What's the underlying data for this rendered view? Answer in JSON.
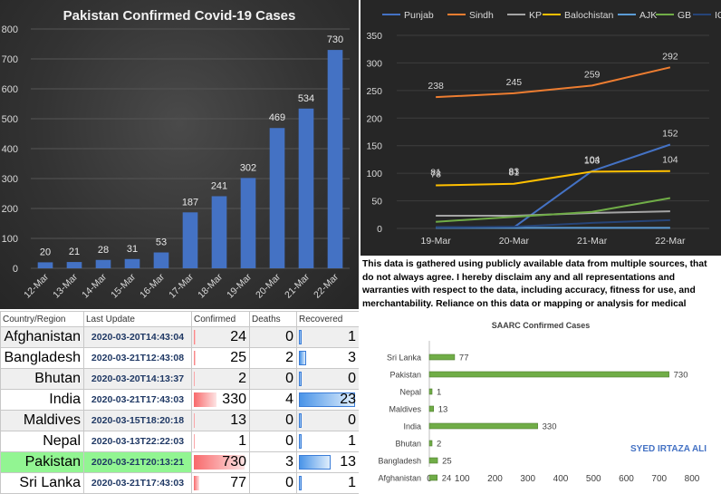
{
  "chart_data": [
    {
      "type": "bar",
      "title": "Pakistan Confirmed Covid-19 Cases",
      "categories": [
        "12-Mar",
        "13-Mar",
        "14-Mar",
        "15-Mar",
        "16-Mar",
        "17-Mar",
        "18-Mar",
        "19-Mar",
        "20-Mar",
        "21-Mar",
        "22-Mar"
      ],
      "values": [
        20,
        21,
        28,
        31,
        53,
        187,
        241,
        302,
        469,
        534,
        730
      ],
      "ylim": [
        0,
        800
      ],
      "yticks": [
        0,
        100,
        200,
        300,
        400,
        500,
        600,
        700,
        800
      ],
      "grid": true,
      "colors": {
        "bar": "#4472c4",
        "background": "#333333",
        "text": "#d9d9d9"
      }
    },
    {
      "type": "line",
      "categories": [
        "19-Mar",
        "20-Mar",
        "21-Mar",
        "22-Mar"
      ],
      "ylim": [
        0,
        350
      ],
      "yticks": [
        0,
        50,
        100,
        150,
        200,
        250,
        300,
        350
      ],
      "legend": "top",
      "grid": true,
      "series": [
        {
          "name": "Punjab",
          "color": "#4472c4",
          "values": [
            2,
            2,
            104,
            152
          ],
          "labels": [
            "",
            "",
            "104",
            "152"
          ]
        },
        {
          "name": "Sindh",
          "color": "#ed7d31",
          "values": [
            238,
            245,
            259,
            292
          ],
          "labels": [
            "238",
            "245",
            "259",
            "292"
          ]
        },
        {
          "name": "KP",
          "color": "#a5a5a5",
          "values": [
            23,
            23,
            28,
            31
          ],
          "labels": [
            "",
            "",
            "",
            ""
          ]
        },
        {
          "name": "Balochistan",
          "color": "#ffc000",
          "values": [
            78,
            81,
            103,
            104
          ],
          "labels": [
            "78",
            "",
            "103",
            "104"
          ]
        },
        {
          "name": "AJK",
          "color": "#5b9bd5",
          "values": [
            1,
            1,
            1,
            1
          ],
          "labels": [
            "",
            "",
            "",
            ""
          ]
        },
        {
          "name": "GB",
          "color": "#70ad47",
          "values": [
            12,
            21,
            30,
            55
          ],
          "labels": [
            "",
            "",
            "",
            ""
          ]
        },
        {
          "name": "ICT",
          "color": "#264478",
          "values": [
            2,
            3,
            10,
            15
          ],
          "labels": [
            "",
            "",
            "",
            ""
          ]
        }
      ],
      "extra_labels": [
        {
          "x": "20-Mar",
          "y": 83,
          "text": "83"
        },
        {
          "x": "19-Mar",
          "y": 81,
          "text": "81"
        },
        {
          "x": "20-Mar",
          "y": 81,
          "text": "81"
        }
      ]
    },
    {
      "type": "bar",
      "orientation": "horizontal",
      "title": "SAARC Confirmed Cases",
      "categories": [
        "Sri Lanka",
        "Pakistan",
        "Nepal",
        "Maldives",
        "India",
        "Bhutan",
        "Bangladesh",
        "Afghanistan"
      ],
      "values": [
        77,
        730,
        1,
        13,
        330,
        2,
        25,
        24
      ],
      "xlim": [
        0,
        800
      ],
      "xticks": [
        0,
        100,
        200,
        300,
        400,
        500,
        600,
        700,
        800
      ],
      "annotation": "SYED IRTAZA ALI",
      "colors": {
        "bar": "#70ad47",
        "annotation": "#4472c4"
      }
    },
    {
      "type": "table",
      "headers": [
        "Country/Region",
        "Last Update",
        "Confirmed",
        "Deaths",
        "Recovered"
      ],
      "rows": [
        {
          "country": "Afghanistan",
          "update": "2020-03-20T14:43:04",
          "confirmed": 24,
          "deaths": 0,
          "recovered": 1
        },
        {
          "country": "Bangladesh",
          "update": "2020-03-21T12:43:08",
          "confirmed": 25,
          "deaths": 2,
          "recovered": 3
        },
        {
          "country": "Bhutan",
          "update": "2020-03-20T14:13:37",
          "confirmed": 2,
          "deaths": 0,
          "recovered": 0
        },
        {
          "country": "India",
          "update": "2020-03-21T17:43:03",
          "confirmed": 330,
          "deaths": 4,
          "recovered": 23
        },
        {
          "country": "Maldives",
          "update": "2020-03-15T18:20:18",
          "confirmed": 13,
          "deaths": 0,
          "recovered": 0
        },
        {
          "country": "Nepal",
          "update": "2020-03-13T22:22:03",
          "confirmed": 1,
          "deaths": 0,
          "recovered": 1
        },
        {
          "country": "Pakistan",
          "update": "2020-03-21T20:13:21",
          "confirmed": 730,
          "deaths": 3,
          "recovered": 13
        },
        {
          "country": "Sri Lanka",
          "update": "2020-03-21T17:43:03",
          "confirmed": 77,
          "deaths": 0,
          "recovered": 1
        }
      ],
      "highlight_row": "Pakistan",
      "colors": {
        "confirmed_bar": "#f8696b",
        "recovered_bar": "#4a94e8",
        "highlight": "#92f592"
      }
    }
  ],
  "disclaimer": "This data is gathered using publicly available data from multiple sources, that do not always agree. I hereby disclaim any and all representations and warranties with respect to the data, including accuracy, fitness for use, and merchantability. Reliance on this data or mapping or analysis for medical guidance or in commerce is strictly prohibited."
}
